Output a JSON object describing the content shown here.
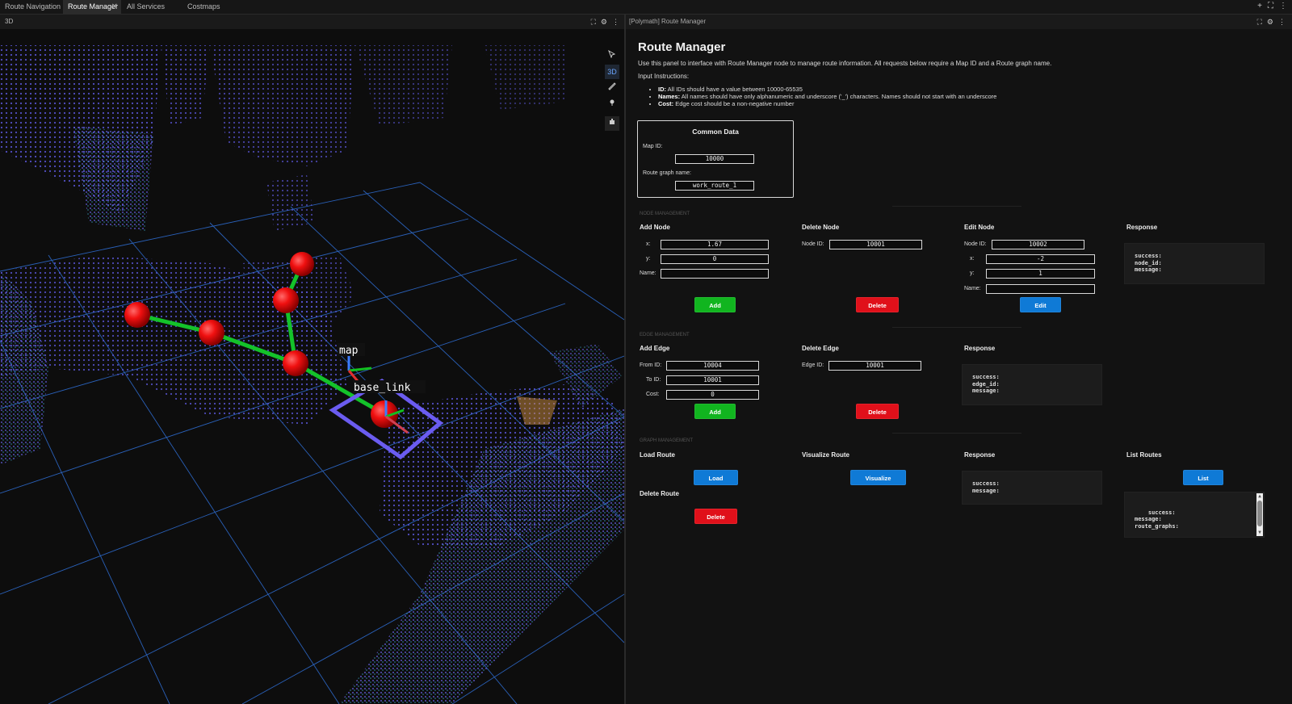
{
  "tabs": [
    {
      "label": "Route Navigation",
      "active": false
    },
    {
      "label": "Route Manager",
      "active": true
    },
    {
      "label": "All Services",
      "active": false
    },
    {
      "label": "Costmaps",
      "active": false
    }
  ],
  "tab_close": "✕",
  "top_actions": [
    "+",
    "⛶",
    "⋮"
  ],
  "panel3d": {
    "title": "3D",
    "frames": {
      "map": "map",
      "base_link": "base_link"
    },
    "tools": [
      "pointer-icon",
      "3D",
      "ruler-icon",
      "pin-icon",
      "camera-icon"
    ],
    "tool_3d_label": "3D",
    "header_icons": [
      "⛶",
      "⚙",
      "⋮"
    ]
  },
  "right": {
    "header": "[Polymath] Route Manager",
    "header_icons": [
      "⛶",
      "⚙",
      "⋮"
    ],
    "title": "Route Manager",
    "intro": "Use this panel to interface with Route Manager node to manage route information. All requests below require a Map ID and a Route graph name.",
    "instr_label": "Input Instructions:",
    "instructions": [
      {
        "key": "ID:",
        "text": " All IDs should have a value between 10000-65535"
      },
      {
        "key": "Names:",
        "text": " All names should have only alphanumeric and underscore ('_') characters. Names should not start with an underscore"
      },
      {
        "key": "Cost:",
        "text": " Edge cost should be a non-negative number"
      }
    ],
    "common": {
      "title": "Common Data",
      "map_id_label": "Map ID:",
      "map_id": "10000",
      "graph_label": "Route graph name:",
      "graph_name": "work_route_1"
    },
    "node": {
      "section": "NODE MANAGEMENT",
      "add": {
        "title": "Add Node",
        "x_label": "x:",
        "x": "1.67",
        "y_label": "y:",
        "y": "0",
        "name_label": "Name:",
        "name": "",
        "button": "Add"
      },
      "delete": {
        "title": "Delete Node",
        "id_label": "Node ID:",
        "id": "10001",
        "button": "Delete"
      },
      "edit": {
        "title": "Edit Node",
        "id_label": "Node ID:",
        "id": "10002",
        "x_label": "x:",
        "x": "-2",
        "y_label": "y:",
        "y": "1",
        "name_label": "Name:",
        "name": "",
        "button": "Edit"
      },
      "response": {
        "title": "Response",
        "text": "success:\nnode_id:\nmessage:"
      }
    },
    "edge": {
      "section": "EDGE MANAGEMENT",
      "add": {
        "title": "Add Edge",
        "from_label": "From ID:",
        "from": "10004",
        "to_label": "To ID:",
        "to": "10001",
        "cost_label": "Cost:",
        "cost": "0",
        "button": "Add"
      },
      "delete": {
        "title": "Delete Edge",
        "id_label": "Edge ID:",
        "id": "10001",
        "button": "Delete"
      },
      "response": {
        "title": "Response",
        "text": "success:\nedge_id:\nmessage:"
      }
    },
    "graph": {
      "section": "GRAPH MANAGEMENT",
      "load": {
        "title": "Load Route",
        "button": "Load"
      },
      "delete": {
        "title": "Delete Route",
        "button": "Delete"
      },
      "visualize": {
        "title": "Visualize Route",
        "button": "Visualize"
      },
      "response": {
        "title": "Response",
        "text": "success:\nmessage:"
      },
      "list": {
        "title": "List Routes",
        "button": "List",
        "text": "success:\nmessage:\nroute_graphs:"
      }
    }
  }
}
